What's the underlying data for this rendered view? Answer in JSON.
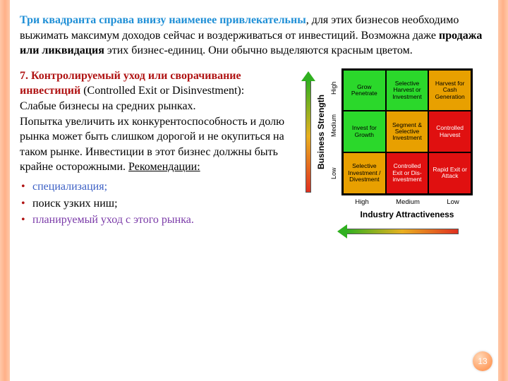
{
  "intro": {
    "hl": "Три квадранта справа внизу наименее привлекательны",
    "rest1": ", для этих бизнесов необходимо выжимать максимум доходов сейчас и воздерживаться от инвестиций. Возможна даже ",
    "bold1": "продажа или ликвидация",
    "rest2": " этих бизнес-единиц. Они обычно выделяются красным цветом."
  },
  "section": {
    "head": "7. Контролируемый уход или сворачивание инвестиций",
    "head_suffix": " (Controlled Exit or Disinvestment):",
    "body1": "Слабые бизнесы на средних рынках.",
    "body2": "Попытка увеличить их конкурентоспособность и долю рынка может быть слишком дорогой и не окупиться на таком рынке. Инвестиции в этот бизнес должны быть крайне осторожными. ",
    "recs_label": "Рекомендации:",
    "recs": {
      "spec": "специализация;",
      "niche": "поиск узких ниш;",
      "exit": "планируемый уход с этого рынка."
    }
  },
  "matrix": {
    "y_label": "Business Strength",
    "x_label": "Industry Attractiveness",
    "y_ticks": {
      "high": "High",
      "med": "Medium",
      "low": "Low"
    },
    "x_ticks": {
      "high": "High",
      "med": "Medium",
      "low": "Low"
    },
    "cells": {
      "c00": {
        "text": "Grow Penetrate",
        "bg": "#2bd82b"
      },
      "c01": {
        "text": "Selective Harvest or Investment",
        "bg": "#2bd82b"
      },
      "c02": {
        "text": "Harvest for Cash Generation",
        "bg": "#e8a000"
      },
      "c10": {
        "text": "Invest for Growth",
        "bg": "#2bd82b"
      },
      "c11": {
        "text": "Segment & Selective Investment",
        "bg": "#e8a000"
      },
      "c12": {
        "text": "Controlled Harvest",
        "bg": "#e01010",
        "fg": "#ffffff"
      },
      "c20": {
        "text": "Selective Investment / Divestment",
        "bg": "#e8a000"
      },
      "c21": {
        "text": "Controlled Exit or Dis-investment",
        "bg": "#e01010",
        "fg": "#ffffff"
      },
      "c22": {
        "text": "Rapid Exit or Attack",
        "bg": "#e01010",
        "fg": "#ffffff"
      }
    }
  },
  "slide_number": "13"
}
